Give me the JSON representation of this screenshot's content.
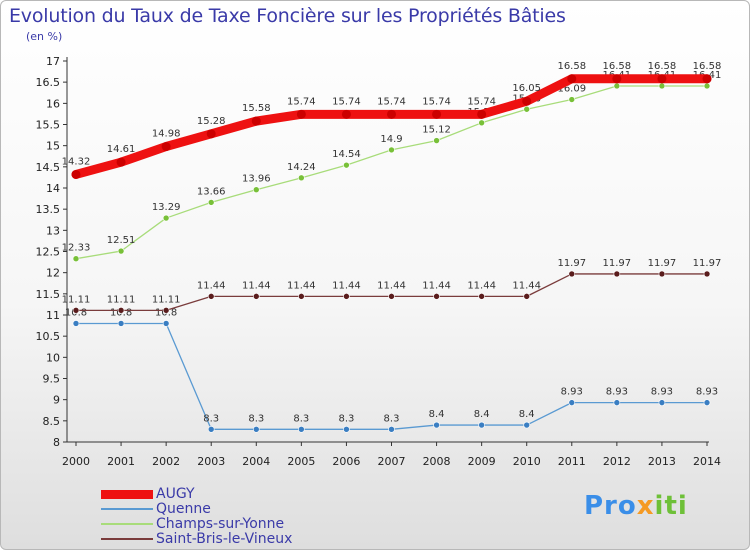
{
  "title": "Evolution du Taux de Taxe Foncière sur les Propriétés Bâties",
  "unit_label": "(en %)",
  "brand": {
    "part1": "Pro",
    "part2": "x",
    "part3": "iti"
  },
  "chart_data": {
    "type": "line",
    "title": "Evolution du Taux de Taxe Foncière sur les Propriétés Bâties",
    "ylabel": "(en %)",
    "xlabel": "",
    "ylim": [
      8,
      17
    ],
    "yticks": [
      "8",
      "8.5",
      "9",
      "9.5",
      "10",
      "10.5",
      "11",
      "11.5",
      "12",
      "12.5",
      "13",
      "13.5",
      "14",
      "14.5",
      "15",
      "15.5",
      "16",
      "16.5",
      "17"
    ],
    "x": [
      "2000",
      "2001",
      "2002",
      "2003",
      "2004",
      "2005",
      "2006",
      "2007",
      "2008",
      "2009",
      "2010",
      "2011",
      "2012",
      "2013",
      "2014"
    ],
    "grid": false,
    "legend_position": "bottom-left",
    "series": [
      {
        "name": "Quenne",
        "color": "#5a9ad2",
        "marker": "#3a7ec2",
        "values": [
          10.8,
          10.8,
          10.8,
          8.3,
          8.3,
          8.3,
          8.3,
          8.3,
          8.4,
          8.4,
          8.4,
          8.93,
          8.93,
          8.93,
          8.93
        ],
        "labels": [
          "10.8",
          "10.8",
          "10.8",
          "8.3",
          "8.3",
          "8.3",
          "8.3",
          "8.3",
          "8.4",
          "8.4",
          "8.4",
          "8.93",
          "8.93",
          "8.93",
          "8.93"
        ]
      },
      {
        "name": "Champs-sur-Yonne",
        "color": "#a8dc7a",
        "marker": "#78c038",
        "values": [
          12.33,
          12.51,
          13.29,
          13.66,
          13.96,
          14.24,
          14.54,
          14.9,
          15.12,
          15.54,
          15.86,
          16.09,
          16.41,
          16.41,
          16.41
        ],
        "labels": [
          "12.33",
          "12.51",
          "13.29",
          "13.66",
          "13.96",
          "14.24",
          "14.54",
          "14.9",
          "15.12",
          "15.54",
          "15.86",
          "16.09",
          "16.41",
          "16.41",
          "16.41"
        ]
      },
      {
        "name": "Saint-Bris-le-Vineux",
        "color": "#7a3c3c",
        "marker": "#5a1c1c",
        "values": [
          11.11,
          11.11,
          11.11,
          11.44,
          11.44,
          11.44,
          11.44,
          11.44,
          11.44,
          11.44,
          11.44,
          11.97,
          11.97,
          11.97,
          11.97
        ],
        "labels": [
          "11.11",
          "11.11",
          "11.11",
          "11.44",
          "11.44",
          "11.44",
          "11.44",
          "11.44",
          "11.44",
          "11.44",
          "11.44",
          "11.97",
          "11.97",
          "11.97",
          "11.97"
        ]
      },
      {
        "name": "AUGY",
        "color": "#ee1111",
        "marker": "#cc0000",
        "values": [
          14.32,
          14.61,
          14.98,
          15.28,
          15.58,
          15.74,
          15.74,
          15.74,
          15.74,
          15.74,
          16.05,
          16.58,
          16.58,
          16.58,
          16.58
        ],
        "labels": [
          "14.32",
          "14.61",
          "14.98",
          "15.28",
          "15.58",
          "15.74",
          "15.74",
          "15.74",
          "15.74",
          "15.74",
          "16.05",
          "16.58",
          "16.58",
          "16.58",
          "16.58"
        ]
      }
    ],
    "legend": [
      "AUGY",
      "Quenne",
      "Champs-sur-Yonne",
      "Saint-Bris-le-Vineux"
    ]
  }
}
